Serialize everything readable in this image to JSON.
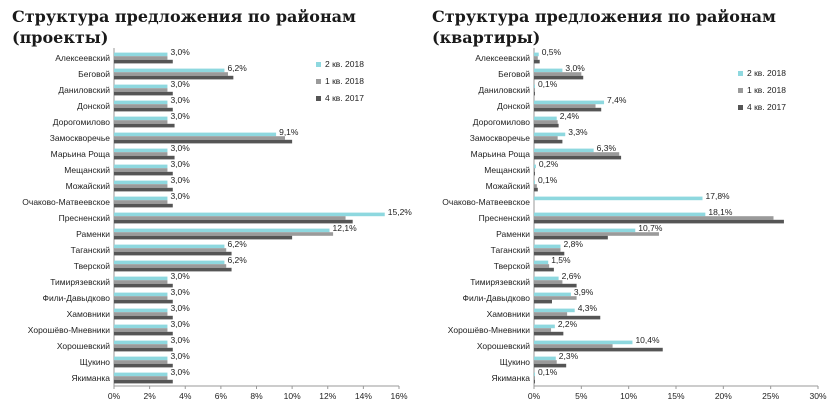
{
  "colors": {
    "q2_2018": "#8ed8df",
    "q1_2018": "#9a9a9a",
    "q4_2017": "#555555"
  },
  "chart_data": [
    {
      "type": "bar",
      "orientation": "horizontal",
      "title": "Структура предложения по районам (проекты)",
      "categories": [
        "Алексеевский",
        "Беговой",
        "Даниловский",
        "Донской",
        "Дорогомилово",
        "Замоскворечье",
        "Марьина Роща",
        "Мещанский",
        "Можайский",
        "Очаково-Матвеевское",
        "Пресненский",
        "Раменки",
        "Таганский",
        "Тверской",
        "Тимирязевский",
        "Фили-Давыдково",
        "Хамовники",
        "Хорошёво-Мневники",
        "Хорошевский",
        "Щукино",
        "Якиманка"
      ],
      "series": [
        {
          "name": "2 кв. 2018",
          "values": [
            3.0,
            6.2,
            3.0,
            3.0,
            3.0,
            9.1,
            3.0,
            3.0,
            3.0,
            3.0,
            15.2,
            12.1,
            6.2,
            6.2,
            3.0,
            3.0,
            3.0,
            3.0,
            3.0,
            3.0,
            3.0
          ]
        },
        {
          "name": "1 кв. 2018",
          "values": [
            3.0,
            6.4,
            3.0,
            3.0,
            3.0,
            9.6,
            3.0,
            3.0,
            3.0,
            3.0,
            13.0,
            12.3,
            6.3,
            6.3,
            3.0,
            3.0,
            3.0,
            3.0,
            3.0,
            3.0,
            3.0
          ]
        },
        {
          "name": "4 кв. 2017",
          "values": [
            3.3,
            6.7,
            3.3,
            3.3,
            3.4,
            10.0,
            3.4,
            3.3,
            3.3,
            3.3,
            13.4,
            10.0,
            6.6,
            6.6,
            3.3,
            3.3,
            3.3,
            3.3,
            3.3,
            3.3,
            3.3
          ]
        }
      ],
      "data_labels": [
        "3,0%",
        "6,2%",
        "3,0%",
        "3,0%",
        "3,0%",
        "9,1%",
        "3,0%",
        "3,0%",
        "3,0%",
        "3,0%",
        "15,2%",
        "12,1%",
        "6,2%",
        "6,2%",
        "3,0%",
        "3,0%",
        "3,0%",
        "3,0%",
        "3,0%",
        "3,0%",
        "3,0%"
      ],
      "xlim": [
        0,
        16
      ],
      "ticks": [
        "0%",
        "2%",
        "4%",
        "6%",
        "8%",
        "10%",
        "12%",
        "14%",
        "16%"
      ],
      "legend_position": "top-right",
      "grid": false
    },
    {
      "type": "bar",
      "orientation": "horizontal",
      "title": "Структура предложения по районам (квартиры)",
      "categories": [
        "Алексеевский",
        "Беговой",
        "Даниловский",
        "Донской",
        "Дорогомилово",
        "Замоскворечье",
        "Марьина Роща",
        "Мещанский",
        "Можайский",
        "Очаково-Матвеевское",
        "Пресненский",
        "Раменки",
        "Таганский",
        "Тверской",
        "Тимирязевский",
        "Фили-Давыдково",
        "Хамовники",
        "Хорошёво-Мневники",
        "Хорошевский",
        "Щукино",
        "Якиманка"
      ],
      "series": [
        {
          "name": "2 кв. 2018",
          "values": [
            0.5,
            3.0,
            0.1,
            7.4,
            2.4,
            3.3,
            6.3,
            0.2,
            0.1,
            17.8,
            18.1,
            10.7,
            2.8,
            1.5,
            2.6,
            3.9,
            4.3,
            2.2,
            10.4,
            2.3,
            0.1
          ]
        },
        {
          "name": "1 кв. 2018",
          "values": [
            0.4,
            5.0,
            0.1,
            6.5,
            2.5,
            2.5,
            9.0,
            0.1,
            0.3,
            0.0,
            25.3,
            13.2,
            2.8,
            1.6,
            3.0,
            4.5,
            3.5,
            1.8,
            8.3,
            2.4,
            0.1
          ]
        },
        {
          "name": "4 кв. 2017",
          "values": [
            0.6,
            5.2,
            0.1,
            7.1,
            2.6,
            3.0,
            9.2,
            0.1,
            0.4,
            0.0,
            26.4,
            7.8,
            3.2,
            2.1,
            4.5,
            1.9,
            7.0,
            3.1,
            13.6,
            3.4,
            0.1
          ]
        }
      ],
      "data_labels": [
        "0,5%",
        "3,0%",
        "0,1%",
        "7,4%",
        "2,4%",
        "3,3%",
        "6,3%",
        "0,2%",
        "0,1%",
        "17,8%",
        "18,1%",
        "10,7%",
        "2,8%",
        "1,5%",
        "2,6%",
        "3,9%",
        "4,3%",
        "2,2%",
        "10,4%",
        "2,3%",
        "0,1%"
      ],
      "xlim": [
        0,
        30
      ],
      "ticks": [
        "0%",
        "5%",
        "10%",
        "15%",
        "20%",
        "25%",
        "30%"
      ],
      "legend_position": "top-right",
      "grid": false
    }
  ]
}
